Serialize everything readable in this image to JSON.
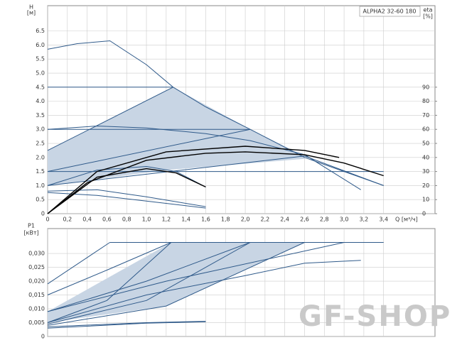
{
  "watermark": "GF-SHOP",
  "chart_data": [
    {
      "type": "line",
      "title": "ALPHA2 32-60 180",
      "y_label": "H",
      "y_unit": "[м]",
      "y2_label": "eta",
      "y2_unit": "[%]",
      "x_label": "Q [м³/ч]",
      "xlim": [
        0,
        3.92
      ],
      "ylim": [
        0,
        7.4
      ],
      "y2lim": [
        0,
        148
      ],
      "grid": true,
      "xticks": [
        0,
        {
          "value": 0.2,
          "label": "0,2"
        },
        {
          "value": 0.4,
          "label": "0,4"
        },
        {
          "value": 0.6,
          "label": "0,6"
        },
        {
          "value": 0.8,
          "label": "0,8"
        },
        {
          "value": 1.0,
          "label": "1,0"
        },
        {
          "value": 1.2,
          "label": "1,2"
        },
        {
          "value": 1.4,
          "label": "1,4"
        },
        {
          "value": 1.6,
          "label": "1,6"
        },
        {
          "value": 1.8,
          "label": "1,8"
        },
        {
          "value": 2.0,
          "label": "2,0"
        },
        {
          "value": 2.2,
          "label": "2,2"
        },
        {
          "value": 2.4,
          "label": "2,4"
        },
        {
          "value": 2.6,
          "label": "2,6"
        },
        {
          "value": 2.8,
          "label": "2,8"
        },
        {
          "value": 3.0,
          "label": "3,0"
        },
        {
          "value": 3.2,
          "label": "3,2"
        },
        {
          "value": 3.4,
          "label": "3,4"
        }
      ],
      "yticks": [
        0,
        0.5,
        {
          "value": 1,
          "label": "1.0"
        },
        1.5,
        {
          "value": 2,
          "label": "2.0"
        },
        2.5,
        {
          "value": 3,
          "label": "3.0"
        },
        3.5,
        {
          "value": 4,
          "label": "4.0"
        },
        4.5,
        {
          "value": 5,
          "label": "5.0"
        },
        5.5,
        {
          "value": 6,
          "label": "6.0"
        },
        6.5
      ],
      "y2ticks": [
        0,
        10,
        20,
        30,
        40,
        50,
        60,
        70,
        80,
        90
      ],
      "series": [
        {
          "fill": true,
          "color": "#c8d5e4",
          "x": [
            0,
            1.27,
            2.05,
            2.6,
            2.6,
            1.2,
            0,
            0
          ],
          "values": [
            2.25,
            4.5,
            3.0,
            2.05,
            1.95,
            1.55,
            1.0,
            1.5
          ]
        },
        {
          "color": "#2f5a8a",
          "x": [
            0,
            0.3,
            0.63,
            1.0,
            1.27,
            1.6,
            2.05,
            2.6,
            3.0,
            3.4
          ],
          "values": [
            5.85,
            6.05,
            6.15,
            5.3,
            4.5,
            3.8,
            3.0,
            2.0,
            1.5,
            1.0
          ]
        },
        {
          "color": "#2f5a8a",
          "x": [
            0,
            1.27
          ],
          "values": [
            4.5,
            4.5
          ]
        },
        {
          "color": "#2f5a8a",
          "x": [
            0,
            2.05
          ],
          "values": [
            3.0,
            3.0
          ]
        },
        {
          "color": "#2f5a8a",
          "x": [
            0,
            3.4
          ],
          "values": [
            1.5,
            1.5
          ]
        },
        {
          "color": "#2f5a8a",
          "x": [
            0,
            1.27
          ],
          "values": [
            2.25,
            4.5
          ]
        },
        {
          "color": "#2f5a8a",
          "x": [
            0,
            2.05
          ],
          "values": [
            1.5,
            3.0
          ]
        },
        {
          "color": "#2f5a8a",
          "x": [
            0,
            2.6,
            3.4
          ],
          "values": [
            1.0,
            2.05,
            1.0
          ]
        },
        {
          "color": "#2f5a8a",
          "x": [
            0,
            0.5,
            1.0,
            1.6,
            2.05,
            2.6,
            3.17
          ],
          "values": [
            3.0,
            3.12,
            3.05,
            2.85,
            2.6,
            2.1,
            0.85
          ]
        },
        {
          "color": "#2f5a8a",
          "x": [
            0,
            0.5,
            1.0,
            1.3,
            1.6
          ],
          "values": [
            1.0,
            1.55,
            1.68,
            1.5,
            0.95
          ]
        },
        {
          "color": "#2f5a8a",
          "x": [
            0,
            0.5,
            1.0,
            1.6
          ],
          "values": [
            0.8,
            0.85,
            0.6,
            0.25
          ]
        },
        {
          "color": "#2f5a8a",
          "x": [
            0,
            0.5,
            1.0,
            1.6
          ],
          "values": [
            0.75,
            0.65,
            0.45,
            0.2
          ]
        },
        {
          "color": "#000000",
          "axis": "y2",
          "x": [
            0,
            0.4,
            1.0,
            1.6,
            2.0,
            2.6,
            3.0,
            3.4
          ],
          "values": [
            0,
            22,
            38,
            43,
            44,
            42,
            36,
            27
          ]
        },
        {
          "color": "#000000",
          "axis": "y2",
          "x": [
            0,
            0.5,
            1.2,
            2.0,
            2.6,
            2.95
          ],
          "values": [
            0,
            30,
            44,
            48,
            45,
            40
          ]
        },
        {
          "color": "#000000",
          "axis": "y2",
          "x": [
            0,
            0.5,
            1.0,
            1.3,
            1.6
          ],
          "values": [
            0,
            26,
            32,
            29,
            19
          ]
        }
      ]
    },
    {
      "type": "line",
      "y_label": "P1",
      "y_unit": "[кВт]",
      "xlim": [
        0,
        3.92
      ],
      "ylim": [
        0,
        0.039
      ],
      "grid": true,
      "yticks": [
        0,
        {
          "value": 0.005,
          "label": "0,005"
        },
        {
          "value": 0.01,
          "label": "0,010"
        },
        {
          "value": 0.015,
          "label": "0,015"
        },
        {
          "value": 0.02,
          "label": "0,020"
        },
        {
          "value": 0.025,
          "label": "0,025"
        },
        {
          "value": 0.03,
          "label": "0,030"
        }
      ],
      "series": [
        {
          "fill": true,
          "color": "#c8d5e4",
          "x": [
            0,
            1.25,
            2.6,
            1.2,
            0
          ],
          "values": [
            0.009,
            0.034,
            0.034,
            0.011,
            0.005
          ]
        },
        {
          "color": "#2f5a8a",
          "x": [
            0.63,
            3.4
          ],
          "values": [
            0.034,
            0.034
          ]
        },
        {
          "color": "#2f5a8a",
          "x": [
            0,
            0.63
          ],
          "values": [
            0.019,
            0.034
          ]
        },
        {
          "color": "#2f5a8a",
          "x": [
            0,
            0.6,
            1.25
          ],
          "values": [
            0.015,
            0.024,
            0.034
          ]
        },
        {
          "color": "#2f5a8a",
          "x": [
            0,
            0.6,
            1.25
          ],
          "values": [
            0.005,
            0.013,
            0.034
          ]
        },
        {
          "color": "#2f5a8a",
          "x": [
            0,
            1.0,
            2.05
          ],
          "values": [
            0.0045,
            0.013,
            0.034
          ]
        },
        {
          "color": "#2f5a8a",
          "x": [
            0,
            1.2,
            2.6
          ],
          "values": [
            0.004,
            0.011,
            0.034
          ]
        },
        {
          "color": "#2f5a8a",
          "x": [
            0,
            1.2,
            3.0
          ],
          "values": [
            0.009,
            0.02,
            0.034
          ]
        },
        {
          "color": "#2f5a8a",
          "x": [
            0,
            1.0,
            2.05
          ],
          "values": [
            0.009,
            0.02,
            0.034
          ]
        },
        {
          "color": "#2f5a8a",
          "x": [
            0,
            1.0,
            2.0,
            2.6,
            3.17
          ],
          "values": [
            0.005,
            0.015,
            0.022,
            0.0265,
            0.0275
          ]
        },
        {
          "color": "#2f5a8a",
          "x": [
            0,
            1.0,
            1.6
          ],
          "values": [
            0.0035,
            0.005,
            0.0055
          ]
        },
        {
          "color": "#2f5a8a",
          "x": [
            0,
            1.0,
            1.6
          ],
          "values": [
            0.003,
            0.0048,
            0.0053
          ]
        }
      ]
    }
  ]
}
